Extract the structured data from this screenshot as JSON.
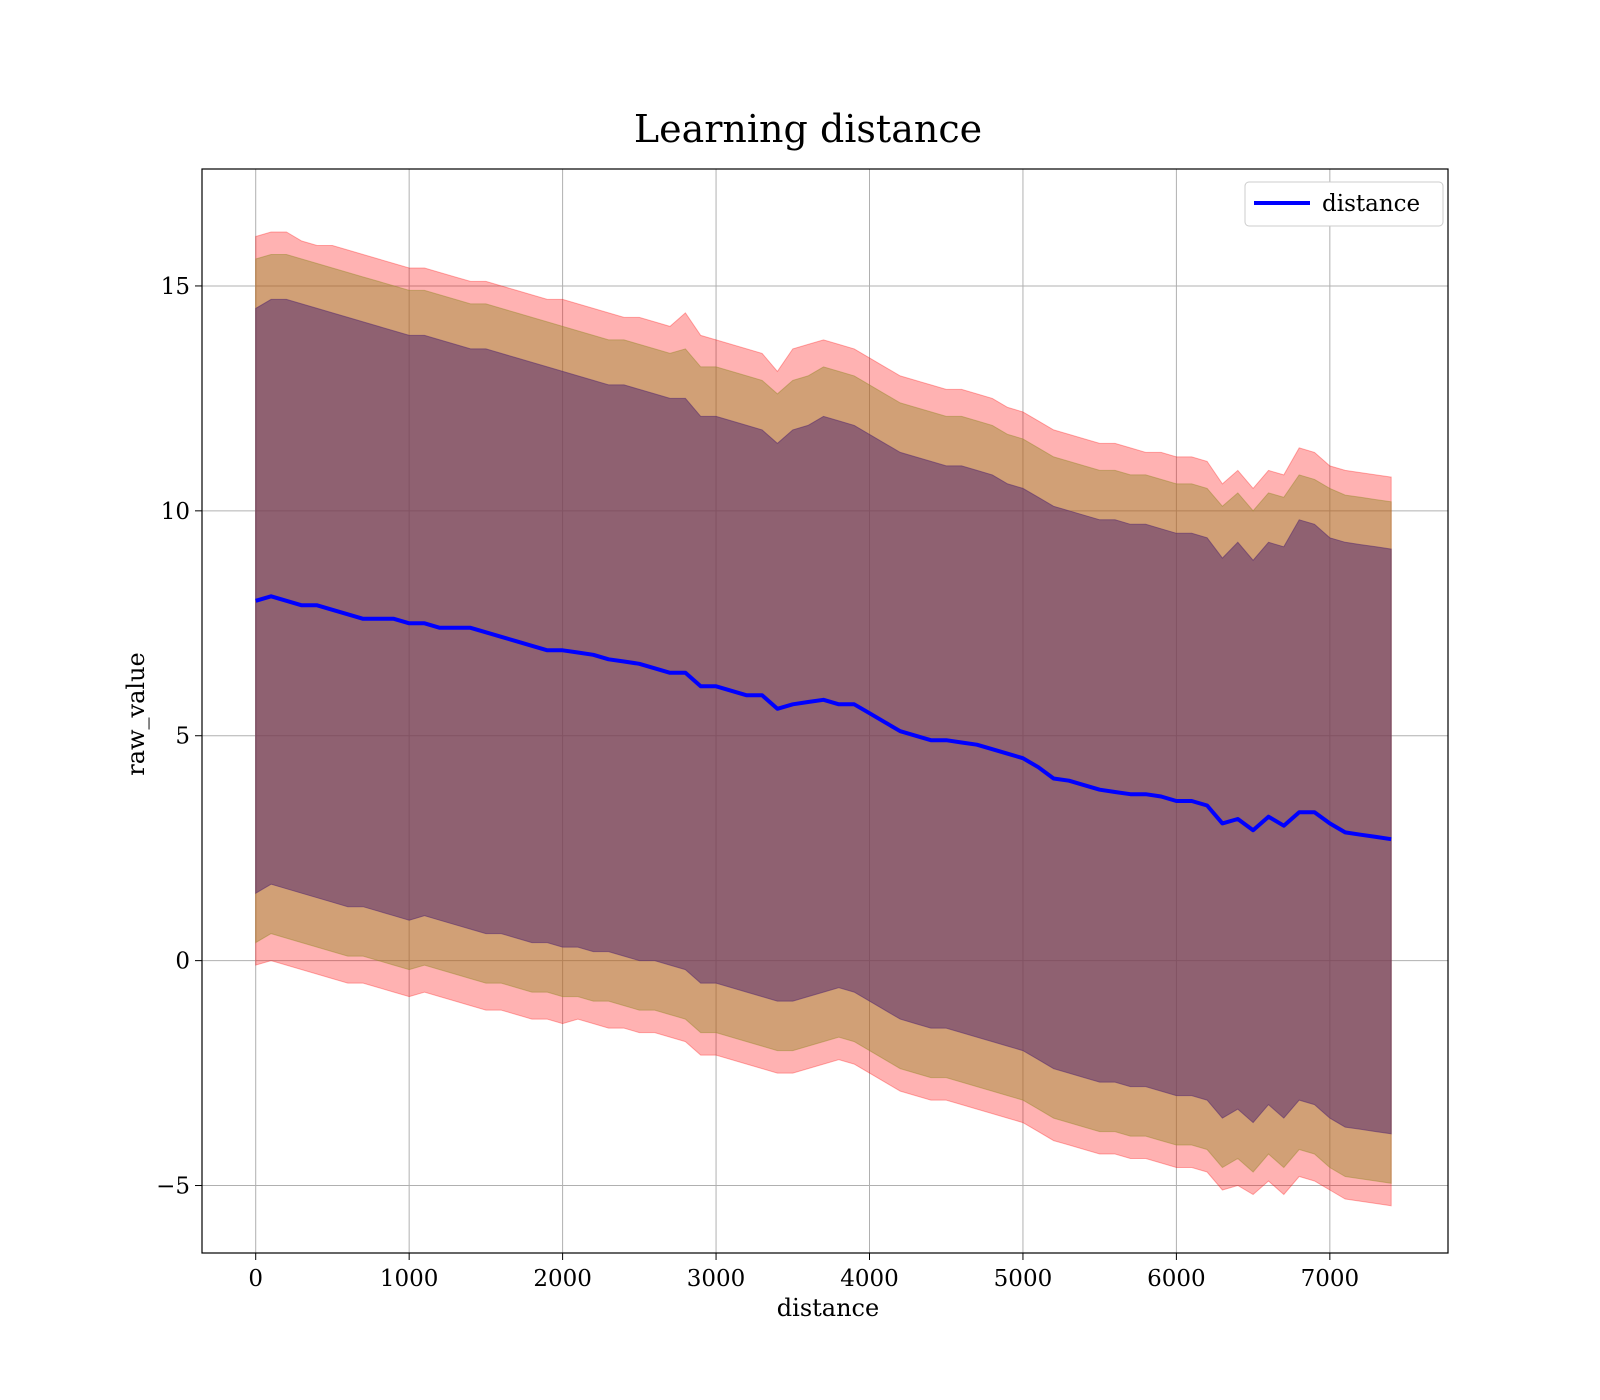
{
  "chart_data": {
    "type": "line",
    "title": "Learning distance",
    "xlabel": "distance",
    "ylabel": "raw_value",
    "xlim": [
      -350,
      7770
    ],
    "ylim": [
      -6.5,
      17.6
    ],
    "xticks": [
      0,
      1000,
      2000,
      3000,
      4000,
      5000,
      6000,
      7000
    ],
    "yticks": [
      -5,
      0,
      5,
      10,
      15
    ],
    "ytick_labels": [
      "−5",
      "0",
      "5",
      "10",
      "15"
    ],
    "grid": true,
    "legend": {
      "position": "upper-right",
      "entries": [
        "distance"
      ]
    },
    "colors": {
      "line": "#0000ff",
      "band_outer": "#ff0000",
      "band_mid": "#9a8a2c",
      "band_inner": "#5a2d6e",
      "axes": "#000000"
    },
    "x": [
      0,
      100,
      200,
      300,
      400,
      500,
      600,
      700,
      800,
      900,
      1000,
      1100,
      1200,
      1300,
      1400,
      1500,
      1600,
      1700,
      1800,
      1900,
      2000,
      2100,
      2200,
      2300,
      2400,
      2500,
      2600,
      2700,
      2800,
      2900,
      3000,
      3100,
      3200,
      3300,
      3400,
      3500,
      3600,
      3700,
      3800,
      3900,
      4000,
      4100,
      4200,
      4300,
      4400,
      4500,
      4600,
      4700,
      4800,
      4900,
      5000,
      5100,
      5200,
      5300,
      5400,
      5500,
      5600,
      5700,
      5800,
      5900,
      6000,
      6100,
      6200,
      6300,
      6400,
      6500,
      6600,
      6700,
      6800,
      6900,
      7000,
      7100,
      7200,
      7300,
      7400
    ],
    "series": [
      {
        "name": "distance",
        "values": [
          8.0,
          8.1,
          8.0,
          7.9,
          7.9,
          7.8,
          7.7,
          7.6,
          7.6,
          7.6,
          7.5,
          7.5,
          7.4,
          7.4,
          7.4,
          7.3,
          7.2,
          7.1,
          7.0,
          6.9,
          6.9,
          6.85,
          6.8,
          6.7,
          6.65,
          6.6,
          6.5,
          6.4,
          6.4,
          6.1,
          6.1,
          6.0,
          5.9,
          5.9,
          5.6,
          5.7,
          5.75,
          5.8,
          5.7,
          5.7,
          5.5,
          5.3,
          5.1,
          5.0,
          4.9,
          4.9,
          4.85,
          4.8,
          4.7,
          4.6,
          4.5,
          4.3,
          4.05,
          4.0,
          3.9,
          3.8,
          3.75,
          3.7,
          3.7,
          3.65,
          3.55,
          3.55,
          3.45,
          3.05,
          3.15,
          2.9,
          3.2,
          3.0,
          3.3,
          3.3,
          3.05,
          2.85,
          2.8,
          2.75,
          2.7
        ]
      }
    ],
    "bands": [
      {
        "name": "outer",
        "upper": [
          16.1,
          16.2,
          16.2,
          16.0,
          15.9,
          15.9,
          15.8,
          15.7,
          15.6,
          15.5,
          15.4,
          15.4,
          15.3,
          15.2,
          15.1,
          15.1,
          15.0,
          14.9,
          14.8,
          14.7,
          14.7,
          14.6,
          14.5,
          14.4,
          14.3,
          14.3,
          14.2,
          14.1,
          14.4,
          13.9,
          13.8,
          13.7,
          13.6,
          13.5,
          13.1,
          13.6,
          13.7,
          13.8,
          13.7,
          13.6,
          13.4,
          13.2,
          13.0,
          12.9,
          12.8,
          12.7,
          12.7,
          12.6,
          12.5,
          12.3,
          12.2,
          12.0,
          11.8,
          11.7,
          11.6,
          11.5,
          11.5,
          11.4,
          11.3,
          11.3,
          11.2,
          11.2,
          11.1,
          10.6,
          10.9,
          10.5,
          10.9,
          10.8,
          11.4,
          11.3,
          11.0,
          10.9,
          10.85,
          10.8,
          10.75
        ],
        "lower": [
          -0.1,
          0.0,
          -0.1,
          -0.2,
          -0.3,
          -0.4,
          -0.5,
          -0.5,
          -0.6,
          -0.7,
          -0.8,
          -0.7,
          -0.8,
          -0.9,
          -1.0,
          -1.1,
          -1.1,
          -1.2,
          -1.3,
          -1.3,
          -1.4,
          -1.3,
          -1.4,
          -1.5,
          -1.5,
          -1.6,
          -1.6,
          -1.7,
          -1.8,
          -2.1,
          -2.1,
          -2.2,
          -2.3,
          -2.4,
          -2.5,
          -2.5,
          -2.4,
          -2.3,
          -2.2,
          -2.3,
          -2.5,
          -2.7,
          -2.9,
          -3.0,
          -3.1,
          -3.1,
          -3.2,
          -3.3,
          -3.4,
          -3.5,
          -3.6,
          -3.8,
          -4.0,
          -4.1,
          -4.2,
          -4.3,
          -4.3,
          -4.4,
          -4.4,
          -4.5,
          -4.6,
          -4.6,
          -4.7,
          -5.1,
          -5.0,
          -5.2,
          -4.9,
          -5.2,
          -4.8,
          -4.9,
          -5.1,
          -5.3,
          -5.35,
          -5.4,
          -5.45
        ]
      },
      {
        "name": "middle",
        "upper": [
          15.6,
          15.7,
          15.7,
          15.6,
          15.5,
          15.4,
          15.3,
          15.2,
          15.1,
          15.0,
          14.9,
          14.9,
          14.8,
          14.7,
          14.6,
          14.6,
          14.5,
          14.4,
          14.3,
          14.2,
          14.1,
          14.0,
          13.9,
          13.8,
          13.8,
          13.7,
          13.6,
          13.5,
          13.6,
          13.2,
          13.2,
          13.1,
          13.0,
          12.9,
          12.6,
          12.9,
          13.0,
          13.2,
          13.1,
          13.0,
          12.8,
          12.6,
          12.4,
          12.3,
          12.2,
          12.1,
          12.1,
          12.0,
          11.9,
          11.7,
          11.6,
          11.4,
          11.2,
          11.1,
          11.0,
          10.9,
          10.9,
          10.8,
          10.8,
          10.7,
          10.6,
          10.6,
          10.5,
          10.1,
          10.4,
          10.0,
          10.4,
          10.3,
          10.8,
          10.7,
          10.5,
          10.35,
          10.3,
          10.25,
          10.2
        ],
        "lower": [
          0.4,
          0.6,
          0.5,
          0.4,
          0.3,
          0.2,
          0.1,
          0.1,
          0.0,
          -0.1,
          -0.2,
          -0.1,
          -0.2,
          -0.3,
          -0.4,
          -0.5,
          -0.5,
          -0.6,
          -0.7,
          -0.7,
          -0.8,
          -0.8,
          -0.9,
          -0.9,
          -1.0,
          -1.1,
          -1.1,
          -1.2,
          -1.3,
          -1.6,
          -1.6,
          -1.7,
          -1.8,
          -1.9,
          -2.0,
          -2.0,
          -1.9,
          -1.8,
          -1.7,
          -1.8,
          -2.0,
          -2.2,
          -2.4,
          -2.5,
          -2.6,
          -2.6,
          -2.7,
          -2.8,
          -2.9,
          -3.0,
          -3.1,
          -3.3,
          -3.5,
          -3.6,
          -3.7,
          -3.8,
          -3.8,
          -3.9,
          -3.9,
          -4.0,
          -4.1,
          -4.1,
          -4.2,
          -4.6,
          -4.4,
          -4.7,
          -4.3,
          -4.6,
          -4.2,
          -4.3,
          -4.6,
          -4.8,
          -4.85,
          -4.9,
          -4.95
        ]
      },
      {
        "name": "inner",
        "upper": [
          14.5,
          14.7,
          14.7,
          14.6,
          14.5,
          14.4,
          14.3,
          14.2,
          14.1,
          14.0,
          13.9,
          13.9,
          13.8,
          13.7,
          13.6,
          13.6,
          13.5,
          13.4,
          13.3,
          13.2,
          13.1,
          13.0,
          12.9,
          12.8,
          12.8,
          12.7,
          12.6,
          12.5,
          12.5,
          12.1,
          12.1,
          12.0,
          11.9,
          11.8,
          11.5,
          11.8,
          11.9,
          12.1,
          12.0,
          11.9,
          11.7,
          11.5,
          11.3,
          11.2,
          11.1,
          11.0,
          11.0,
          10.9,
          10.8,
          10.6,
          10.5,
          10.3,
          10.1,
          10.0,
          9.9,
          9.8,
          9.8,
          9.7,
          9.7,
          9.6,
          9.5,
          9.5,
          9.4,
          8.95,
          9.3,
          8.9,
          9.3,
          9.2,
          9.8,
          9.7,
          9.4,
          9.3,
          9.25,
          9.2,
          9.15
        ],
        "lower": [
          1.5,
          1.7,
          1.6,
          1.5,
          1.4,
          1.3,
          1.2,
          1.2,
          1.1,
          1.0,
          0.9,
          1.0,
          0.9,
          0.8,
          0.7,
          0.6,
          0.6,
          0.5,
          0.4,
          0.4,
          0.3,
          0.3,
          0.2,
          0.2,
          0.1,
          0.0,
          0.0,
          -0.1,
          -0.2,
          -0.5,
          -0.5,
          -0.6,
          -0.7,
          -0.8,
          -0.9,
          -0.9,
          -0.8,
          -0.7,
          -0.6,
          -0.7,
          -0.9,
          -1.1,
          -1.3,
          -1.4,
          -1.5,
          -1.5,
          -1.6,
          -1.7,
          -1.8,
          -1.9,
          -2.0,
          -2.2,
          -2.4,
          -2.5,
          -2.6,
          -2.7,
          -2.7,
          -2.8,
          -2.8,
          -2.9,
          -3.0,
          -3.0,
          -3.1,
          -3.5,
          -3.3,
          -3.6,
          -3.2,
          -3.5,
          -3.1,
          -3.2,
          -3.5,
          -3.7,
          -3.75,
          -3.8,
          -3.85
        ]
      }
    ]
  }
}
